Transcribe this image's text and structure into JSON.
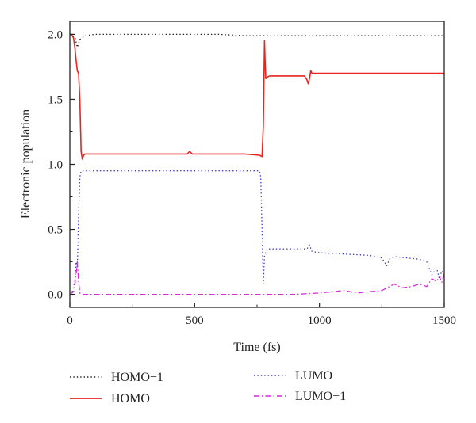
{
  "chart_data": {
    "type": "line",
    "title": "",
    "xlabel": "Time (fs)",
    "ylabel": "Electronic population",
    "xlim": [
      0,
      1500
    ],
    "ylim": [
      -0.1,
      2.1
    ],
    "xticks": [
      0,
      500,
      1000,
      1500
    ],
    "xtick_labels": [
      "0",
      "500",
      "1000",
      "1500"
    ],
    "yticks": [
      0.0,
      0.5,
      1.0,
      1.5,
      2.0
    ],
    "ytick_labels": [
      "0.0",
      "0.5",
      "1.0",
      "1.5",
      "2.0"
    ],
    "grid": false,
    "legend_position": "below",
    "series": [
      {
        "name": "HOMO−1",
        "color": "#222222",
        "style": "dotted",
        "x": [
          0,
          20,
          30,
          40,
          60,
          100,
          200,
          300,
          400,
          500,
          600,
          700,
          800,
          900,
          1000,
          1100,
          1200,
          1300,
          1400,
          1500
        ],
        "y": [
          2.0,
          1.98,
          1.9,
          1.96,
          1.99,
          2.0,
          2.0,
          2.0,
          2.0,
          2.0,
          2.0,
          1.99,
          1.99,
          1.99,
          1.99,
          1.99,
          1.99,
          1.99,
          1.99,
          1.99
        ]
      },
      {
        "name": "HOMO",
        "color": "#e8241e",
        "style": "solid",
        "x": [
          0,
          5,
          10,
          15,
          20,
          25,
          30,
          35,
          40,
          45,
          50,
          55,
          60,
          100,
          150,
          200,
          300,
          400,
          470,
          480,
          490,
          500,
          600,
          700,
          760,
          770,
          775,
          778,
          780,
          782,
          785,
          790,
          800,
          850,
          900,
          940,
          950,
          955,
          960,
          965,
          970,
          1000,
          1100,
          1200,
          1300,
          1400,
          1500
        ],
        "y": [
          2.0,
          2.0,
          1.99,
          1.97,
          1.9,
          1.8,
          1.72,
          1.7,
          1.5,
          1.1,
          1.04,
          1.07,
          1.08,
          1.08,
          1.08,
          1.08,
          1.08,
          1.08,
          1.08,
          1.1,
          1.08,
          1.08,
          1.08,
          1.08,
          1.07,
          1.06,
          1.3,
          1.7,
          1.95,
          1.8,
          1.66,
          1.67,
          1.68,
          1.68,
          1.68,
          1.68,
          1.65,
          1.62,
          1.66,
          1.72,
          1.7,
          1.7,
          1.7,
          1.7,
          1.7,
          1.7,
          1.7
        ]
      },
      {
        "name": "LUMO",
        "color": "#3a3acb",
        "style": "dotted",
        "x": [
          0,
          10,
          20,
          25,
          30,
          35,
          40,
          45,
          50,
          100,
          200,
          300,
          400,
          500,
          600,
          700,
          760,
          765,
          770,
          775,
          780,
          790,
          800,
          850,
          900,
          950,
          960,
          970,
          1000,
          1100,
          1200,
          1250,
          1270,
          1280,
          1300,
          1350,
          1400,
          1430,
          1450,
          1470,
          1480,
          1490,
          1500
        ],
        "y": [
          0.0,
          0.02,
          0.1,
          0.25,
          0.2,
          0.6,
          0.9,
          0.95,
          0.95,
          0.95,
          0.95,
          0.95,
          0.95,
          0.95,
          0.95,
          0.95,
          0.95,
          0.9,
          0.5,
          0.08,
          0.3,
          0.35,
          0.35,
          0.35,
          0.35,
          0.35,
          0.38,
          0.33,
          0.32,
          0.31,
          0.3,
          0.28,
          0.22,
          0.27,
          0.29,
          0.28,
          0.27,
          0.25,
          0.15,
          0.2,
          0.12,
          0.18,
          0.17
        ]
      },
      {
        "name": "LUMO+1",
        "color": "#d62cd6",
        "style": "dashdot",
        "x": [
          0,
          15,
          25,
          30,
          35,
          40,
          50,
          100,
          200,
          300,
          400,
          500,
          600,
          700,
          800,
          900,
          1000,
          1050,
          1100,
          1150,
          1200,
          1250,
          1270,
          1300,
          1330,
          1370,
          1400,
          1430,
          1450,
          1470,
          1480,
          1490,
          1500
        ],
        "y": [
          0.0,
          0.02,
          0.15,
          0.25,
          0.1,
          0.01,
          0.0,
          0.0,
          0.0,
          0.0,
          0.0,
          0.0,
          0.0,
          0.0,
          0.0,
          0.0,
          0.01,
          0.02,
          0.03,
          0.01,
          0.02,
          0.03,
          0.05,
          0.08,
          0.05,
          0.06,
          0.08,
          0.06,
          0.12,
          0.1,
          0.14,
          0.09,
          0.16
        ]
      }
    ]
  }
}
